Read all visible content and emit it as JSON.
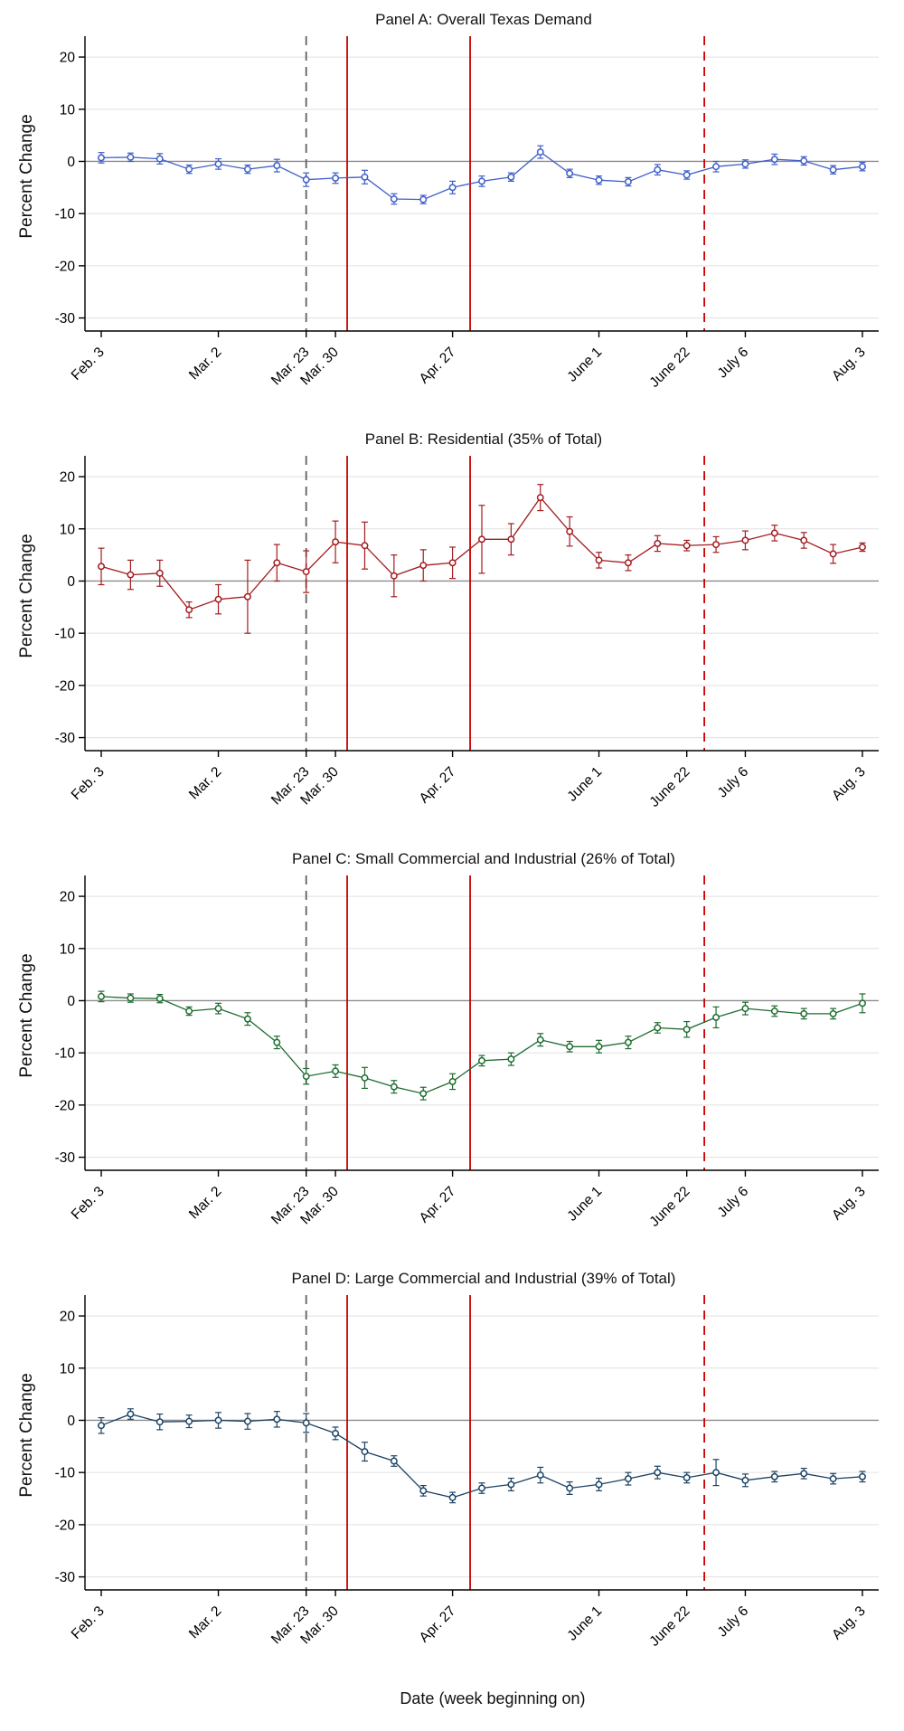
{
  "figure": {
    "xlabel": "Date (week beginning on)",
    "ylabel": "Percent Change",
    "x_tick_labels": [
      "Feb. 3",
      "Mar. 2",
      "Mar. 23",
      "Mar. 30",
      "Apr. 27",
      "June 1",
      "June 22",
      "July 6",
      "Aug. 3"
    ],
    "x_tick_positions": [
      0,
      4,
      7,
      8,
      12,
      17,
      20,
      22,
      26
    ],
    "y_ticks": [
      20,
      10,
      0,
      -10,
      -20,
      -30
    ],
    "ylim": [
      -32.5,
      24
    ],
    "n_weeks": 27,
    "grid": "horizontal",
    "zero_line_color": "#8c8c8c",
    "vlines": [
      {
        "x": 7.0,
        "style": "dashed",
        "color": "#606060"
      },
      {
        "x": 8.4,
        "style": "solid",
        "color": "#cc0000"
      },
      {
        "x": 12.6,
        "style": "solid",
        "color": "#cc0000"
      },
      {
        "x": 20.6,
        "style": "dashed",
        "color": "#cc0000"
      }
    ]
  },
  "chart_data": [
    {
      "type": "line",
      "title": "Panel A: Overall Texas Demand",
      "color": "#3e5ec9",
      "marker": "open-circle",
      "error_bars": true,
      "values": [
        0.7,
        0.8,
        0.5,
        -1.5,
        -0.5,
        -1.5,
        -0.8,
        -3.5,
        -3.2,
        -3.0,
        -7.2,
        -7.3,
        -5.0,
        -3.8,
        -3.0,
        1.8,
        -2.3,
        -3.6,
        -3.9,
        -1.6,
        -2.6,
        -1.0,
        -0.5,
        0.4,
        0.1,
        -1.6,
        -1.0
      ],
      "errors": [
        1.0,
        0.8,
        1.0,
        0.8,
        1.0,
        0.8,
        1.2,
        1.3,
        1.0,
        1.3,
        1.0,
        0.8,
        1.2,
        1.0,
        0.8,
        1.2,
        0.8,
        0.8,
        0.8,
        1.0,
        0.8,
        1.0,
        0.8,
        1.0,
        0.8,
        0.8,
        0.8
      ]
    },
    {
      "type": "line",
      "title": "Panel B: Residential (35% of Total)",
      "color": "#a31c1f",
      "marker": "open-circle",
      "error_bars": true,
      "values": [
        2.8,
        1.2,
        1.5,
        -5.5,
        -3.5,
        -3.0,
        3.5,
        1.8,
        7.5,
        6.8,
        1.0,
        3.0,
        3.5,
        8.0,
        8.0,
        16.0,
        9.5,
        4.0,
        3.5,
        7.2,
        6.8,
        7.0,
        7.8,
        9.2,
        7.8,
        5.2,
        6.5
      ],
      "errors": [
        3.5,
        2.8,
        2.5,
        1.5,
        2.8,
        7.0,
        3.5,
        4.0,
        4.0,
        4.5,
        4.0,
        3.0,
        3.0,
        6.5,
        3.0,
        2.5,
        2.8,
        1.5,
        1.5,
        1.5,
        1.0,
        1.5,
        1.8,
        1.5,
        1.5,
        1.8,
        0.8
      ]
    },
    {
      "type": "line",
      "title": "Panel C: Small Commercial and Industrial (26% of Total)",
      "color": "#1d6b2e",
      "marker": "open-circle",
      "error_bars": true,
      "values": [
        0.8,
        0.5,
        0.4,
        -2.0,
        -1.5,
        -3.5,
        -8.0,
        -14.5,
        -13.5,
        -14.8,
        -16.5,
        -17.8,
        -15.5,
        -11.5,
        -11.2,
        -7.5,
        -8.8,
        -8.8,
        -8.0,
        -5.2,
        -5.5,
        -3.2,
        -1.5,
        -2.0,
        -2.5,
        -2.5,
        -0.5
      ],
      "errors": [
        1.0,
        0.8,
        0.8,
        0.8,
        1.0,
        1.2,
        1.2,
        1.5,
        1.2,
        2.0,
        1.2,
        1.2,
        1.5,
        1.0,
        1.2,
        1.2,
        1.0,
        1.2,
        1.2,
        1.0,
        1.5,
        2.0,
        1.2,
        1.0,
        1.0,
        1.0,
        1.8
      ]
    },
    {
      "type": "line",
      "title": "Panel D: Large Commercial and Industrial (39% of Total)",
      "color": "#1c4365",
      "marker": "open-circle",
      "error_bars": true,
      "values": [
        -1.0,
        1.2,
        -0.3,
        -0.2,
        0.0,
        -0.2,
        0.2,
        -0.5,
        -2.5,
        -6.0,
        -7.8,
        -13.5,
        -14.8,
        -13.0,
        -12.3,
        -10.5,
        -13.0,
        -12.3,
        -11.2,
        -10.0,
        -11.0,
        -10.0,
        -11.5,
        -10.8,
        -10.2,
        -11.2,
        -10.8
      ],
      "errors": [
        1.5,
        1.0,
        1.5,
        1.2,
        1.5,
        1.5,
        1.5,
        1.8,
        1.2,
        1.8,
        1.0,
        1.0,
        1.0,
        1.0,
        1.2,
        1.5,
        1.2,
        1.2,
        1.2,
        1.2,
        1.0,
        2.5,
        1.2,
        1.0,
        1.0,
        1.0,
        1.0
      ]
    }
  ]
}
